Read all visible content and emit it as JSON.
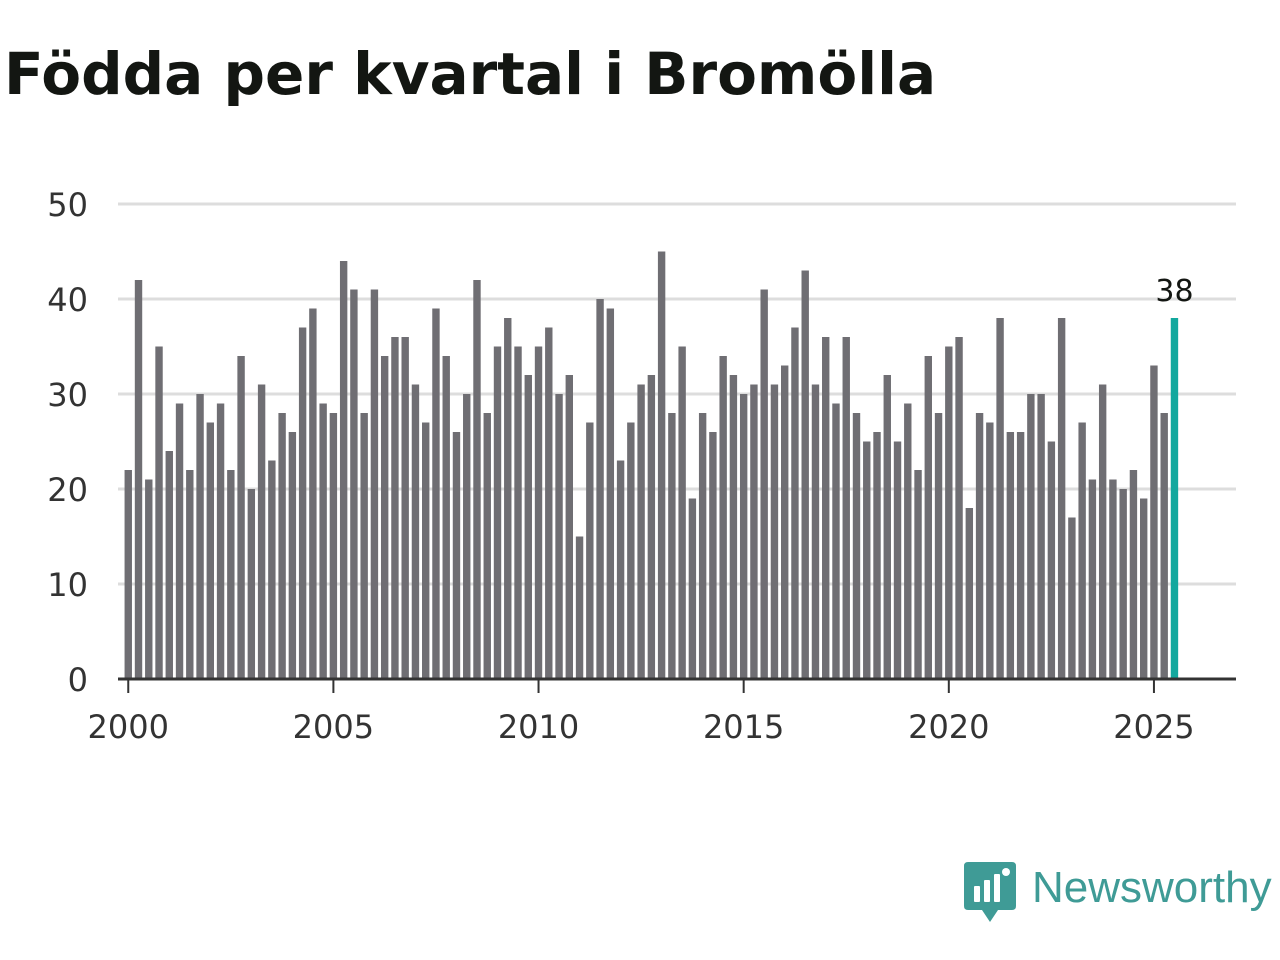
{
  "chart_data": {
    "type": "bar",
    "title": "Födda per kvartal i Bromölla",
    "xlabel": "",
    "ylabel": "",
    "ylim": [
      0,
      50
    ],
    "y_ticks": [
      0,
      10,
      20,
      30,
      40,
      50
    ],
    "x_range": [
      1999.75,
      2027.0
    ],
    "x_ticks": [
      2000,
      2005,
      2010,
      2015,
      2020,
      2025
    ],
    "grid": true,
    "x": [
      "2000 Q1",
      "2000 Q2",
      "2000 Q3",
      "2000 Q4",
      "2001 Q1",
      "2001 Q2",
      "2001 Q3",
      "2001 Q4",
      "2002 Q1",
      "2002 Q2",
      "2002 Q3",
      "2002 Q4",
      "2003 Q1",
      "2003 Q2",
      "2003 Q3",
      "2003 Q4",
      "2004 Q1",
      "2004 Q2",
      "2004 Q3",
      "2004 Q4",
      "2005 Q1",
      "2005 Q2",
      "2005 Q3",
      "2005 Q4",
      "2006 Q1",
      "2006 Q2",
      "2006 Q3",
      "2006 Q4",
      "2007 Q1",
      "2007 Q2",
      "2007 Q3",
      "2007 Q4",
      "2008 Q1",
      "2008 Q2",
      "2008 Q3",
      "2008 Q4",
      "2009 Q1",
      "2009 Q2",
      "2009 Q3",
      "2009 Q4",
      "2010 Q1",
      "2010 Q2",
      "2010 Q3",
      "2010 Q4",
      "2011 Q1",
      "2011 Q2",
      "2011 Q3",
      "2011 Q4",
      "2012 Q1",
      "2012 Q2",
      "2012 Q3",
      "2012 Q4",
      "2013 Q1",
      "2013 Q2",
      "2013 Q3",
      "2013 Q4",
      "2014 Q1",
      "2014 Q2",
      "2014 Q3",
      "2014 Q4",
      "2015 Q1",
      "2015 Q2",
      "2015 Q3",
      "2015 Q4",
      "2016 Q1",
      "2016 Q2",
      "2016 Q3",
      "2016 Q4",
      "2017 Q1",
      "2017 Q2",
      "2017 Q3",
      "2017 Q4",
      "2018 Q1",
      "2018 Q2",
      "2018 Q3",
      "2018 Q4",
      "2019 Q1",
      "2019 Q2",
      "2019 Q3",
      "2019 Q4",
      "2020 Q1",
      "2020 Q2",
      "2020 Q3",
      "2020 Q4",
      "2021 Q1",
      "2021 Q2",
      "2021 Q3",
      "2021 Q4",
      "2022 Q1",
      "2022 Q2",
      "2022 Q3",
      "2022 Q4",
      "2023 Q1",
      "2023 Q2",
      "2023 Q3",
      "2023 Q4",
      "2024 Q1",
      "2024 Q2",
      "2024 Q3",
      "2024 Q4",
      "2025 Q1",
      "2025 Q2",
      "2025 Q3"
    ],
    "values": [
      22,
      42,
      21,
      35,
      24,
      29,
      22,
      30,
      27,
      29,
      22,
      34,
      20,
      31,
      23,
      28,
      26,
      37,
      39,
      29,
      28,
      44,
      41,
      28,
      41,
      34,
      36,
      36,
      31,
      27,
      39,
      34,
      26,
      30,
      42,
      28,
      35,
      38,
      35,
      32,
      35,
      37,
      30,
      32,
      15,
      27,
      40,
      39,
      23,
      27,
      31,
      32,
      45,
      28,
      35,
      19,
      28,
      26,
      34,
      32,
      30,
      31,
      41,
      31,
      33,
      37,
      43,
      31,
      36,
      29,
      36,
      28,
      25,
      26,
      32,
      25,
      29,
      22,
      34,
      28,
      35,
      36,
      18,
      28,
      27,
      38,
      26,
      26,
      30,
      30,
      25,
      38,
      17,
      27,
      21,
      31,
      21,
      20,
      22,
      19,
      33,
      28,
      38
    ],
    "highlight_index": 102,
    "data_labels": [
      "38"
    ],
    "colors": {
      "bar": "#6f6e73",
      "highlight": "#13a89e",
      "grid": "#dddddd",
      "axis": "#333333"
    }
  },
  "brand": {
    "name": "Newsworthy",
    "icon": "newsworthy-logo-icon",
    "color": "#3f9b96"
  }
}
